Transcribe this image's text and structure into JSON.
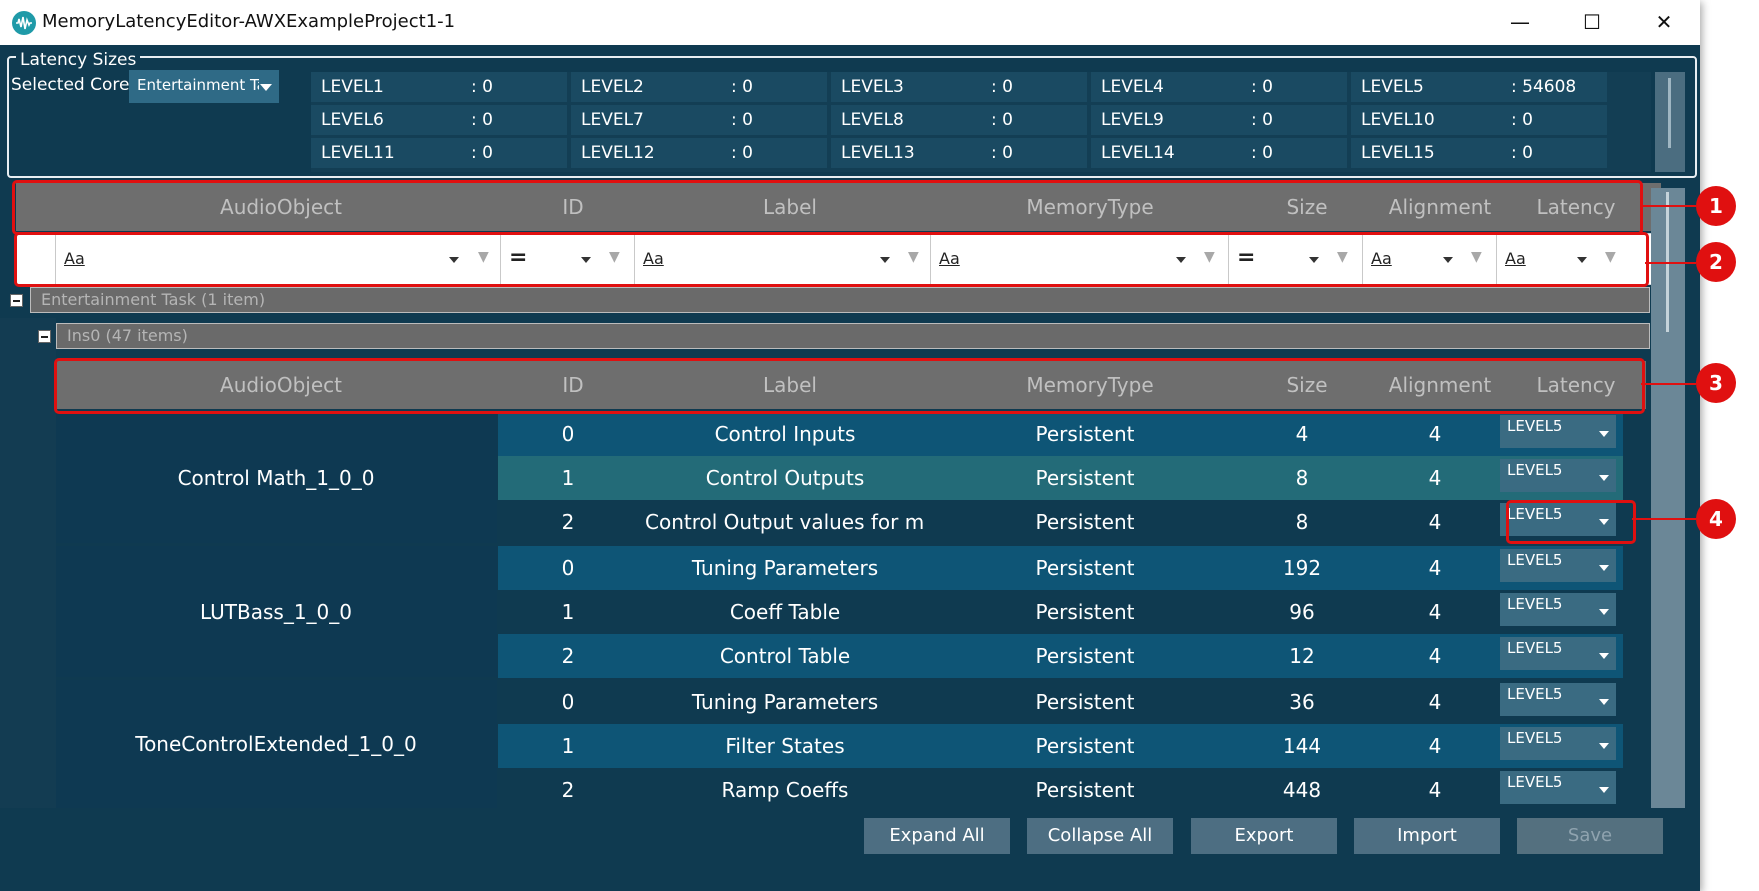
{
  "window": {
    "title": "MemoryLatencyEditor-AWXExampleProject1-1"
  },
  "latency_sizes": {
    "legend": "Latency Sizes",
    "selected_core_label": "Selected Core:",
    "selected_core_value": "Entertainment Tas",
    "levels": [
      {
        "name": "LEVEL1",
        "value": ": 0"
      },
      {
        "name": "LEVEL2",
        "value": ": 0"
      },
      {
        "name": "LEVEL3",
        "value": ": 0"
      },
      {
        "name": "LEVEL4",
        "value": ": 0"
      },
      {
        "name": "LEVEL5",
        "value": ": 54608"
      },
      {
        "name": "LEVEL6",
        "value": ": 0"
      },
      {
        "name": "LEVEL7",
        "value": ": 0"
      },
      {
        "name": "LEVEL8",
        "value": ": 0"
      },
      {
        "name": "LEVEL9",
        "value": ": 0"
      },
      {
        "name": "LEVEL10",
        "value": ": 0"
      },
      {
        "name": "LEVEL11",
        "value": ": 0"
      },
      {
        "name": "LEVEL12",
        "value": ": 0"
      },
      {
        "name": "LEVEL13",
        "value": ": 0"
      },
      {
        "name": "LEVEL14",
        "value": ": 0"
      },
      {
        "name": "LEVEL15",
        "value": ": 0"
      }
    ]
  },
  "columns": [
    "AudioObject",
    "ID",
    "Label",
    "MemoryType",
    "Size",
    "Alignment",
    "Latency"
  ],
  "filters": {
    "text_op": "Aa",
    "num_op": "="
  },
  "groups": {
    "task": "Entertainment Task (1 item)",
    "ins": "Ins0 (47 items)"
  },
  "objects": [
    {
      "name": "Control Math_1_0_0",
      "rows": [
        {
          "id": "0",
          "label": "Control Inputs",
          "memtype": "Persistent",
          "size": "4",
          "align": "4",
          "latency": "LEVEL5"
        },
        {
          "id": "1",
          "label": "Control Outputs",
          "memtype": "Persistent",
          "size": "8",
          "align": "4",
          "latency": "LEVEL5"
        },
        {
          "id": "2",
          "label": "Control Output values for mete",
          "memtype": "Persistent",
          "size": "8",
          "align": "4",
          "latency": "LEVEL5"
        }
      ]
    },
    {
      "name": "LUTBass_1_0_0",
      "rows": [
        {
          "id": "0",
          "label": "Tuning Parameters",
          "memtype": "Persistent",
          "size": "192",
          "align": "4",
          "latency": "LEVEL5"
        },
        {
          "id": "1",
          "label": "Coeff Table",
          "memtype": "Persistent",
          "size": "96",
          "align": "4",
          "latency": "LEVEL5"
        },
        {
          "id": "2",
          "label": "Control Table",
          "memtype": "Persistent",
          "size": "12",
          "align": "4",
          "latency": "LEVEL5"
        }
      ]
    },
    {
      "name": "ToneControlExtended_1_0_0",
      "rows": [
        {
          "id": "0",
          "label": "Tuning Parameters",
          "memtype": "Persistent",
          "size": "36",
          "align": "4",
          "latency": "LEVEL5"
        },
        {
          "id": "1",
          "label": "Filter States",
          "memtype": "Persistent",
          "size": "144",
          "align": "4",
          "latency": "LEVEL5"
        },
        {
          "id": "2",
          "label": "Ramp Coeffs",
          "memtype": "Persistent",
          "size": "448",
          "align": "4",
          "latency": "LEVEL5"
        }
      ]
    }
  ],
  "buttons": {
    "expand_all": "Expand All",
    "collapse_all": "Collapse All",
    "export": "Export",
    "import": "Import",
    "save": "Save"
  },
  "callouts": [
    "1",
    "2",
    "3",
    "4"
  ],
  "colors": {
    "background": "#0f3a50",
    "header": "#6e6e6e",
    "row_alt": "#0e5576",
    "row_highlight": "#236b78",
    "callout": "#e01010"
  }
}
